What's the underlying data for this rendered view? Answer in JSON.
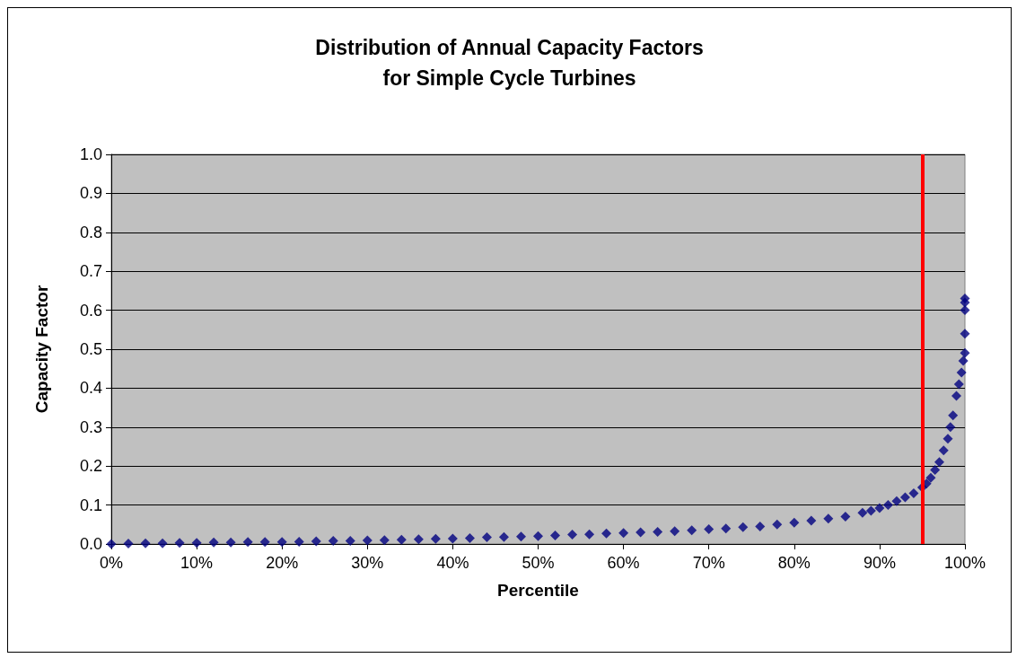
{
  "chart_data": {
    "type": "scatter",
    "title": "Distribution of Annual Capacity Factors\nfor Simple Cycle Turbines",
    "xlabel": "Percentile",
    "ylabel": "Capacity Factor",
    "marker": "diamond",
    "grid": "y",
    "xlim": [
      0,
      100
    ],
    "ylim": [
      0,
      1
    ],
    "xticks": [
      {
        "value": 0,
        "label": "0%"
      },
      {
        "value": 10,
        "label": "10%"
      },
      {
        "value": 20,
        "label": "20%"
      },
      {
        "value": 30,
        "label": "30%"
      },
      {
        "value": 40,
        "label": "40%"
      },
      {
        "value": 50,
        "label": "50%"
      },
      {
        "value": 60,
        "label": "60%"
      },
      {
        "value": 70,
        "label": "70%"
      },
      {
        "value": 80,
        "label": "80%"
      },
      {
        "value": 90,
        "label": "90%"
      },
      {
        "value": 100,
        "label": "100%"
      }
    ],
    "yticks": [
      {
        "value": 0,
        "label": "0.0"
      },
      {
        "value": 0.1,
        "label": "0.1"
      },
      {
        "value": 0.2,
        "label": "0.2"
      },
      {
        "value": 0.3,
        "label": "0.3"
      },
      {
        "value": 0.4,
        "label": "0.4"
      },
      {
        "value": 0.5,
        "label": "0.5"
      },
      {
        "value": 0.6,
        "label": "0.6"
      },
      {
        "value": 0.7,
        "label": "0.7"
      },
      {
        "value": 0.8,
        "label": "0.8"
      },
      {
        "value": 0.9,
        "label": "0.9"
      },
      {
        "value": 1,
        "label": "1.0"
      }
    ],
    "ref_lines": [
      {
        "axis": "x",
        "value": 95,
        "color": "#ff0000"
      }
    ],
    "series": [
      {
        "color": "#000080",
        "x": [
          0,
          2,
          4,
          6,
          8,
          10,
          12,
          14,
          16,
          18,
          20,
          22,
          24,
          26,
          28,
          30,
          32,
          34,
          36,
          38,
          40,
          42,
          44,
          46,
          48,
          50,
          52,
          54,
          56,
          58,
          60,
          62,
          64,
          66,
          68,
          70,
          72,
          74,
          76,
          78,
          80,
          82,
          84,
          86,
          88,
          89,
          90,
          91,
          92,
          93,
          94,
          95,
          95.5,
          96,
          96.5,
          97,
          97.5,
          98,
          98.3,
          98.6,
          99,
          99.3,
          99.6,
          99.8,
          100,
          100,
          100,
          100,
          100
        ],
        "values": [
          0,
          0.001,
          0.002,
          0.002,
          0.003,
          0.003,
          0.004,
          0.004,
          0.005,
          0.005,
          0.005,
          0.006,
          0.007,
          0.008,
          0.008,
          0.009,
          0.01,
          0.011,
          0.012,
          0.013,
          0.014,
          0.015,
          0.017,
          0.018,
          0.019,
          0.02,
          0.022,
          0.024,
          0.025,
          0.027,
          0.028,
          0.03,
          0.031,
          0.033,
          0.035,
          0.038,
          0.04,
          0.043,
          0.045,
          0.05,
          0.055,
          0.06,
          0.065,
          0.07,
          0.08,
          0.085,
          0.092,
          0.1,
          0.11,
          0.12,
          0.13,
          0.145,
          0.155,
          0.17,
          0.19,
          0.21,
          0.24,
          0.27,
          0.3,
          0.33,
          0.38,
          0.41,
          0.44,
          0.47,
          0.49,
          0.54,
          0.6,
          0.62,
          0.63
        ]
      }
    ]
  }
}
